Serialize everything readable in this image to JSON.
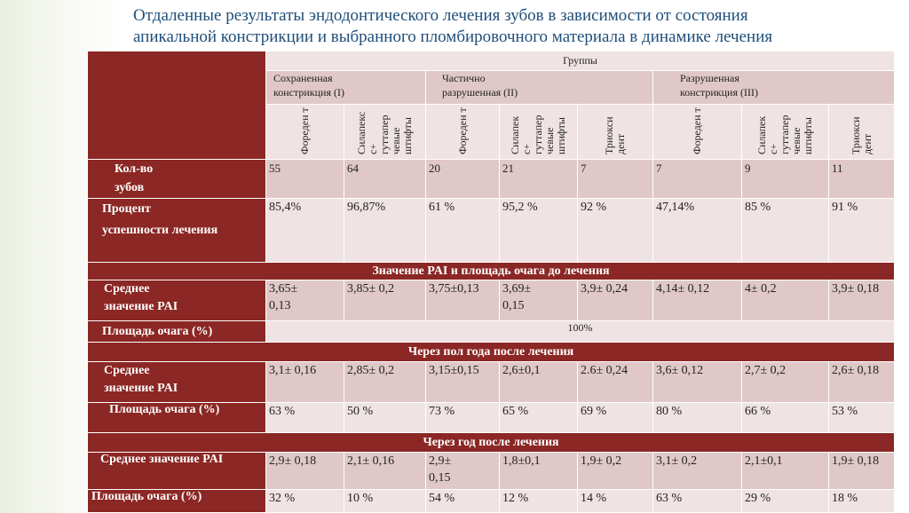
{
  "title": {
    "line1": "Отдаленные результаты эндодонтического лечения зубов в зависимости от состояния",
    "line2": "апикальной констрикции и выбранного пломбировочного материала в динамике лечения"
  },
  "header": {
    "groups_label": "Группы",
    "groups": [
      {
        "line1": "Сохраненная",
        "line2": "констрикция (I)"
      },
      {
        "line1": "Частично",
        "line2": "разрушенная (II)"
      },
      {
        "line1": "Разрушенная",
        "line2": "констрикция (III)"
      }
    ],
    "materials": [
      "Фореден т",
      "Силапекс с+ гуттапер чевые штифты",
      "Фореден т",
      "Силапек с+ гуттапер чевые штифты",
      "Триокси дент",
      "Фореден т",
      "Силапек с+ гуттапер чевые штифты",
      "Триокси дент"
    ]
  },
  "rows": {
    "count": {
      "label1": "Кол-во",
      "label2": "зубов",
      "values": [
        "55",
        "64",
        "20",
        "21",
        "7",
        "7",
        "9",
        "11"
      ]
    },
    "success": {
      "label1": "Процент",
      "label2": "успешности лечения",
      "values": [
        "85,4%",
        "96,87%",
        "61 %",
        "95,2 %",
        "92 %",
        "47,14%",
        "85 %",
        "91 %"
      ]
    }
  },
  "sections": {
    "before": {
      "title": "Значение PAI и площадь очага до лечения",
      "pai_label1": "Среднее",
      "pai_label2": "значение PAI",
      "pai_values": [
        " 3,65±",
        "3,85± 0,2",
        "3,75±0,13",
        "3,69±",
        "3,9± 0,24",
        "4,14± 0,12",
        "4± 0,2",
        "3,9± 0,18"
      ],
      "pai_values_line2": [
        "0,13",
        "",
        "",
        "0,15",
        "",
        "",
        "",
        ""
      ],
      "area_label": "Площадь очага (%)",
      "area_value": "100%"
    },
    "half_year": {
      "title": "Через пол года после лечения",
      "pai_label1": "Среднее",
      "pai_label2": "значение PAI",
      "pai_values": [
        "3,1± 0,16",
        "2,85± 0,2",
        "3,15±0,15",
        "2,6±0,1",
        "2.6± 0,24",
        "3,6± 0,12",
        "2,7± 0,2",
        "2,6± 0,18"
      ],
      "area_label": "Площадь очага (%)",
      "area_values": [
        "63 %",
        "50 %",
        "73 %",
        "65 %",
        "69 %",
        "80 %",
        "66 %",
        "53 %"
      ]
    },
    "year": {
      "title": "Через год после лечения",
      "pai_label": "Среднее значение PAI",
      "pai_values": [
        "2,9± 0,18",
        "2,1± 0,16",
        "2,9±",
        "1,8±0,1",
        "1,9± 0,2",
        "3,1± 0,2",
        "2,1±0,1",
        "1,9± 0,18"
      ],
      "pai_values_line2": [
        "",
        "",
        "0,15",
        "",
        "",
        "",
        "",
        ""
      ],
      "area_label": "Площадь очага (%)",
      "area_values": [
        "32 %",
        "10 %",
        "54 %",
        "12 %",
        "14 %",
        "63 %",
        "29 %",
        "18 %"
      ]
    }
  }
}
